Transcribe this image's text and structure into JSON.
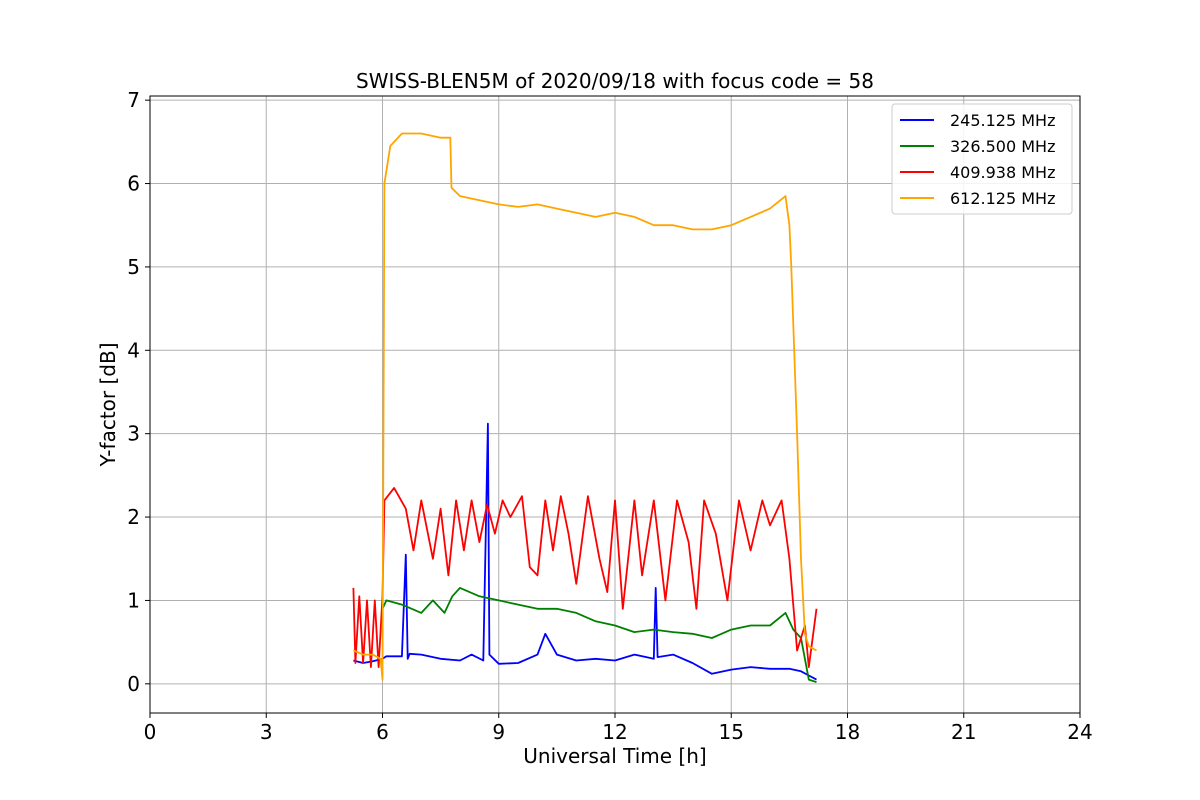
{
  "chart_data": {
    "type": "line",
    "title": "SWISS-BLEN5M of 2020/09/18 with focus code = 58",
    "xlabel": "Universal Time [h]",
    "ylabel": "Y-factor [dB]",
    "xlim": [
      0,
      24
    ],
    "ylim": [
      -0.35,
      7.05
    ],
    "xticks": [
      0,
      3,
      6,
      9,
      12,
      15,
      18,
      21,
      24
    ],
    "xtick_labels": [
      "0",
      "3",
      "6",
      "9",
      "12",
      "15",
      "18",
      "21",
      "24"
    ],
    "yticks": [
      0,
      1,
      2,
      3,
      4,
      5,
      6,
      7
    ],
    "ytick_labels": [
      "0",
      "1",
      "2",
      "3",
      "4",
      "5",
      "6",
      "7"
    ],
    "grid": true,
    "legend_position": "top-right",
    "series": [
      {
        "name": "245.125 MHz",
        "color": "#0000ff",
        "points": [
          [
            5.25,
            0.28
          ],
          [
            5.5,
            0.25
          ],
          [
            5.75,
            0.27
          ],
          [
            6.0,
            0.3
          ],
          [
            6.1,
            0.33
          ],
          [
            6.5,
            0.33
          ],
          [
            6.6,
            1.55
          ],
          [
            6.65,
            0.3
          ],
          [
            6.7,
            0.36
          ],
          [
            7.0,
            0.35
          ],
          [
            7.5,
            0.3
          ],
          [
            8.0,
            0.28
          ],
          [
            8.3,
            0.35
          ],
          [
            8.6,
            0.28
          ],
          [
            8.72,
            3.12
          ],
          [
            8.76,
            0.35
          ],
          [
            9.0,
            0.24
          ],
          [
            9.5,
            0.25
          ],
          [
            10.0,
            0.35
          ],
          [
            10.2,
            0.6
          ],
          [
            10.5,
            0.35
          ],
          [
            11.0,
            0.28
          ],
          [
            11.5,
            0.3
          ],
          [
            12.0,
            0.28
          ],
          [
            12.5,
            0.35
          ],
          [
            13.0,
            0.3
          ],
          [
            13.05,
            1.15
          ],
          [
            13.1,
            0.32
          ],
          [
            13.5,
            0.35
          ],
          [
            14.0,
            0.25
          ],
          [
            14.5,
            0.12
          ],
          [
            15.0,
            0.17
          ],
          [
            15.5,
            0.2
          ],
          [
            16.0,
            0.18
          ],
          [
            16.5,
            0.18
          ],
          [
            16.8,
            0.15
          ],
          [
            17.0,
            0.1
          ],
          [
            17.2,
            0.05
          ]
        ]
      },
      {
        "name": "326.500 MHz",
        "color": "#008000",
        "points": [
          [
            6.0,
            0.9
          ],
          [
            6.1,
            1.0
          ],
          [
            6.5,
            0.95
          ],
          [
            7.0,
            0.85
          ],
          [
            7.3,
            1.0
          ],
          [
            7.6,
            0.85
          ],
          [
            7.8,
            1.05
          ],
          [
            8.0,
            1.15
          ],
          [
            8.5,
            1.05
          ],
          [
            9.0,
            1.0
          ],
          [
            9.5,
            0.95
          ],
          [
            10.0,
            0.9
          ],
          [
            10.5,
            0.9
          ],
          [
            11.0,
            0.85
          ],
          [
            11.5,
            0.75
          ],
          [
            12.0,
            0.7
          ],
          [
            12.5,
            0.62
          ],
          [
            13.0,
            0.65
          ],
          [
            13.5,
            0.62
          ],
          [
            14.0,
            0.6
          ],
          [
            14.5,
            0.55
          ],
          [
            15.0,
            0.65
          ],
          [
            15.5,
            0.7
          ],
          [
            16.0,
            0.7
          ],
          [
            16.4,
            0.85
          ],
          [
            16.6,
            0.65
          ],
          [
            16.8,
            0.55
          ],
          [
            17.0,
            0.05
          ],
          [
            17.2,
            0.02
          ]
        ]
      },
      {
        "name": "409.938 MHz",
        "color": "#ff0000",
        "points": [
          [
            5.25,
            1.15
          ],
          [
            5.3,
            0.25
          ],
          [
            5.4,
            1.05
          ],
          [
            5.5,
            0.25
          ],
          [
            5.6,
            1.0
          ],
          [
            5.7,
            0.2
          ],
          [
            5.8,
            1.0
          ],
          [
            5.9,
            0.2
          ],
          [
            6.0,
            1.05
          ],
          [
            6.05,
            2.2
          ],
          [
            6.3,
            2.35
          ],
          [
            6.6,
            2.1
          ],
          [
            6.8,
            1.6
          ],
          [
            7.0,
            2.2
          ],
          [
            7.3,
            1.5
          ],
          [
            7.5,
            2.1
          ],
          [
            7.7,
            1.3
          ],
          [
            7.9,
            2.2
          ],
          [
            8.1,
            1.6
          ],
          [
            8.3,
            2.2
          ],
          [
            8.5,
            1.7
          ],
          [
            8.7,
            2.15
          ],
          [
            8.9,
            1.8
          ],
          [
            9.1,
            2.2
          ],
          [
            9.3,
            2.0
          ],
          [
            9.6,
            2.25
          ],
          [
            9.8,
            1.4
          ],
          [
            10.0,
            1.3
          ],
          [
            10.2,
            2.2
          ],
          [
            10.4,
            1.6
          ],
          [
            10.6,
            2.25
          ],
          [
            10.8,
            1.8
          ],
          [
            11.0,
            1.2
          ],
          [
            11.3,
            2.25
          ],
          [
            11.6,
            1.5
          ],
          [
            11.8,
            1.1
          ],
          [
            12.0,
            2.2
          ],
          [
            12.2,
            0.9
          ],
          [
            12.5,
            2.2
          ],
          [
            12.7,
            1.3
          ],
          [
            13.0,
            2.2
          ],
          [
            13.3,
            1.0
          ],
          [
            13.6,
            2.2
          ],
          [
            13.9,
            1.7
          ],
          [
            14.1,
            0.9
          ],
          [
            14.3,
            2.2
          ],
          [
            14.6,
            1.8
          ],
          [
            14.9,
            1.0
          ],
          [
            15.2,
            2.2
          ],
          [
            15.5,
            1.6
          ],
          [
            15.8,
            2.2
          ],
          [
            16.0,
            1.9
          ],
          [
            16.3,
            2.2
          ],
          [
            16.5,
            1.5
          ],
          [
            16.7,
            0.4
          ],
          [
            16.9,
            0.7
          ],
          [
            17.0,
            0.2
          ],
          [
            17.2,
            0.9
          ]
        ]
      },
      {
        "name": "612.125 MHz",
        "color": "#ffa500",
        "points": [
          [
            5.25,
            0.4
          ],
          [
            5.5,
            0.35
          ],
          [
            5.75,
            0.35
          ],
          [
            5.95,
            0.3
          ],
          [
            6.0,
            0.05
          ],
          [
            6.05,
            6.0
          ],
          [
            6.2,
            6.45
          ],
          [
            6.5,
            6.6
          ],
          [
            7.0,
            6.6
          ],
          [
            7.5,
            6.55
          ],
          [
            7.75,
            6.55
          ],
          [
            7.78,
            5.95
          ],
          [
            8.0,
            5.85
          ],
          [
            8.5,
            5.8
          ],
          [
            9.0,
            5.75
          ],
          [
            9.5,
            5.72
          ],
          [
            10.0,
            5.75
          ],
          [
            10.5,
            5.7
          ],
          [
            11.0,
            5.65
          ],
          [
            11.5,
            5.6
          ],
          [
            12.0,
            5.65
          ],
          [
            12.5,
            5.6
          ],
          [
            13.0,
            5.5
          ],
          [
            13.5,
            5.5
          ],
          [
            14.0,
            5.45
          ],
          [
            14.5,
            5.45
          ],
          [
            15.0,
            5.5
          ],
          [
            15.5,
            5.6
          ],
          [
            16.0,
            5.7
          ],
          [
            16.4,
            5.85
          ],
          [
            16.5,
            5.5
          ],
          [
            16.55,
            5.0
          ],
          [
            16.7,
            3.0
          ],
          [
            16.8,
            1.5
          ],
          [
            16.9,
            0.6
          ],
          [
            17.0,
            0.45
          ],
          [
            17.2,
            0.4
          ]
        ]
      }
    ]
  }
}
